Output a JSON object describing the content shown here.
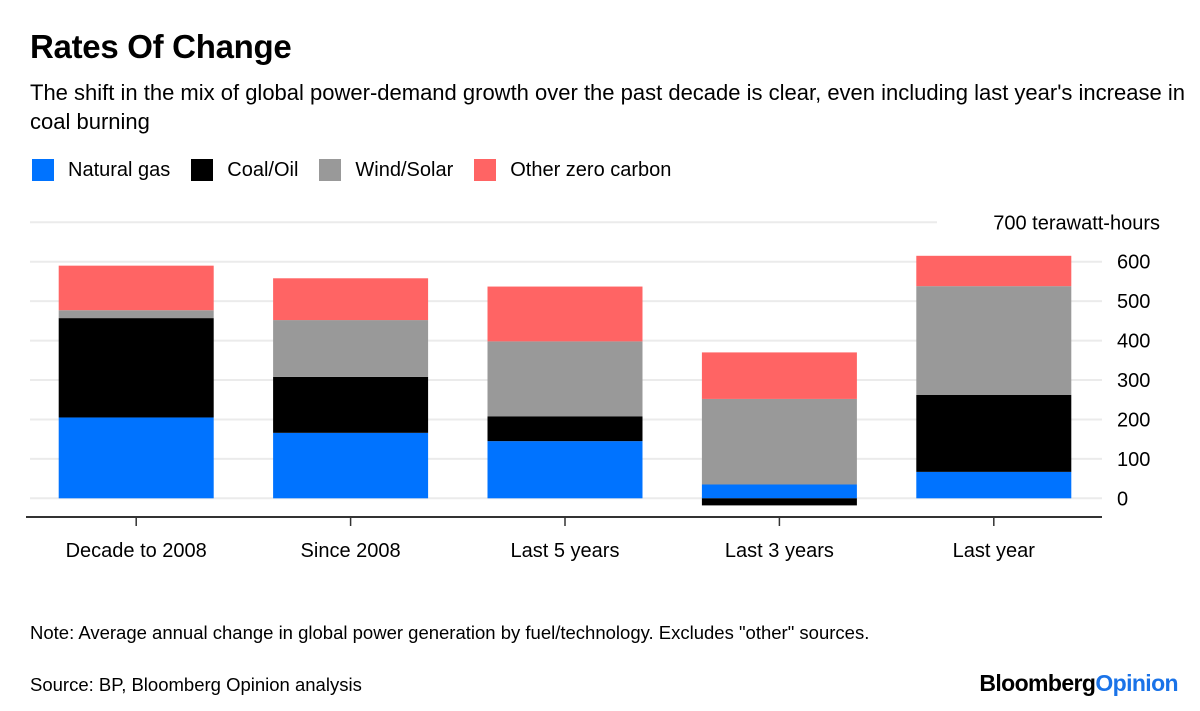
{
  "header": {
    "title": "Rates Of Change",
    "subtitle": "The shift in the mix of global power-demand growth over the past decade is clear, even including last year's increase in coal burning"
  },
  "legend": [
    {
      "name": "Natural gas",
      "color": "#0073ff"
    },
    {
      "name": "Coal/Oil",
      "color": "#000000"
    },
    {
      "name": "Wind/Solar",
      "color": "#999999"
    },
    {
      "name": "Other zero carbon",
      "color": "#ff6464"
    }
  ],
  "footer": {
    "note": "Note: Average annual change in global power generation by fuel/technology. Excludes \"other\" sources.",
    "source": "Source: BP, Bloomberg Opinion analysis",
    "brand_main": "Bloomberg",
    "brand_accent": "Opinion"
  },
  "chart_data": {
    "type": "bar",
    "stacked": true,
    "title": "Rates Of Change",
    "subtitle": "The shift in the mix of global power-demand growth over the past decade is clear, even including last year's increase in coal burning",
    "xlabel": "",
    "ylabel": "terawatt-hours",
    "unit_label": "700 terawatt-hours",
    "categories": [
      "Decade to 2008",
      "Since 2008",
      "Last 5 years",
      "Last 3 years",
      "Last year"
    ],
    "series": [
      {
        "name": "Natural gas",
        "color": "#0073ff",
        "values": [
          205,
          166,
          145,
          35,
          67
        ]
      },
      {
        "name": "Coal/Oil",
        "color": "#000000",
        "values": [
          252,
          142,
          63,
          -18,
          195
        ]
      },
      {
        "name": "Wind/Solar",
        "color": "#999999",
        "values": [
          20,
          144,
          190,
          217,
          276
        ]
      },
      {
        "name": "Other zero carbon",
        "color": "#ff6464",
        "values": [
          113,
          106,
          139,
          118,
          77
        ]
      }
    ],
    "yticks": [
      0,
      100,
      200,
      300,
      400,
      500,
      600,
      700
    ],
    "ytick_labels": [
      "0",
      "100",
      "200",
      "300",
      "400",
      "500",
      "600",
      "700 terawatt-hours"
    ],
    "ylim": [
      -20,
      700
    ],
    "grid": true,
    "y_axis_side": "right",
    "legend_position": "top-left"
  }
}
